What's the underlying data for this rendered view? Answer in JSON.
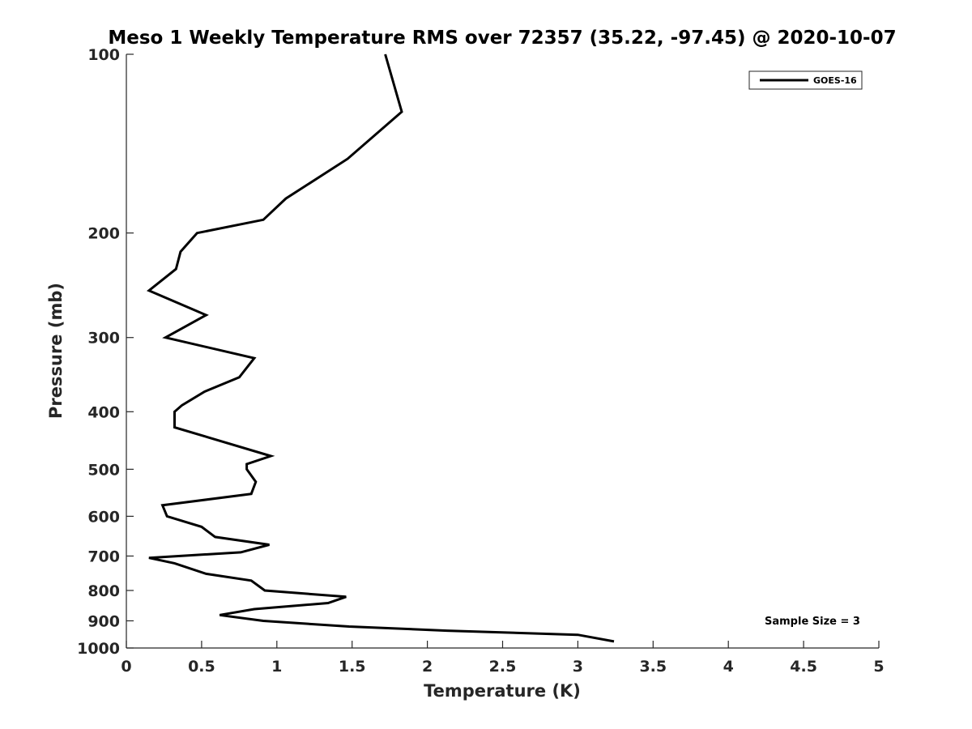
{
  "chart_data": {
    "type": "line",
    "title": "Meso 1 Weekly Temperature RMS over 72357 (35.22, -97.45) @ 2020-10-07",
    "xlabel": "Temperature (K)",
    "ylabel": "Pressure (mb)",
    "xlim": [
      0,
      5
    ],
    "ylim": [
      100,
      1000
    ],
    "yscale": "log",
    "y_reversed": true,
    "grid": false,
    "legend_position": "top-right",
    "x_ticks": [
      "0",
      "0.5",
      "1",
      "1.5",
      "2",
      "2.5",
      "3",
      "3.5",
      "4",
      "4.5",
      "5"
    ],
    "y_ticks": [
      "100",
      "200",
      "300",
      "400",
      "500",
      "600",
      "700",
      "800",
      "900",
      "1000"
    ],
    "series": [
      {
        "name": "GOES-16",
        "color": "#000000",
        "points": [
          [
            1.72,
            100
          ],
          [
            1.83,
            125
          ],
          [
            1.47,
            150
          ],
          [
            1.06,
            175
          ],
          [
            0.91,
            190
          ],
          [
            0.47,
            200
          ],
          [
            0.36,
            215
          ],
          [
            0.33,
            230
          ],
          [
            0.15,
            250
          ],
          [
            0.53,
            275
          ],
          [
            0.26,
            300
          ],
          [
            0.85,
            325
          ],
          [
            0.75,
            350
          ],
          [
            0.52,
            370
          ],
          [
            0.37,
            390
          ],
          [
            0.32,
            400
          ],
          [
            0.32,
            425
          ],
          [
            0.96,
            475
          ],
          [
            0.8,
            490
          ],
          [
            0.8,
            500
          ],
          [
            0.86,
            525
          ],
          [
            0.83,
            550
          ],
          [
            0.24,
            575
          ],
          [
            0.27,
            600
          ],
          [
            0.5,
            625
          ],
          [
            0.59,
            650
          ],
          [
            0.95,
            670
          ],
          [
            0.76,
            690
          ],
          [
            0.15,
            705
          ],
          [
            0.32,
            720
          ],
          [
            0.53,
            750
          ],
          [
            0.83,
            770
          ],
          [
            0.92,
            800
          ],
          [
            1.46,
            820
          ],
          [
            1.34,
            840
          ],
          [
            0.85,
            860
          ],
          [
            0.62,
            880
          ],
          [
            0.91,
            900
          ],
          [
            1.48,
            920
          ],
          [
            2.13,
            935
          ],
          [
            3.0,
            950
          ],
          [
            3.24,
            975
          ]
        ]
      }
    ],
    "annotations": [
      "Sample Size = 3"
    ]
  }
}
